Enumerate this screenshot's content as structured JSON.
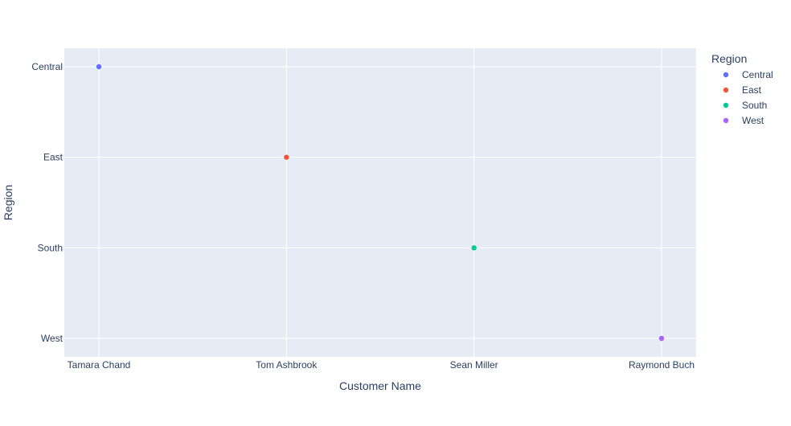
{
  "chart_data": {
    "type": "scatter",
    "title": "",
    "xlabel": "Customer Name",
    "ylabel": "Region",
    "x_categories": [
      "Tamara Chand",
      "Tom Ashbrook",
      "Sean Miller",
      "Raymond Buch"
    ],
    "y_categories": [
      "Central",
      "East",
      "South",
      "West"
    ],
    "legend": {
      "title": "Region",
      "placement": "top-right"
    },
    "grid": true,
    "series": [
      {
        "name": "Central",
        "color": "#636efa",
        "points": [
          {
            "x": "Tamara Chand",
            "y": "Central"
          }
        ]
      },
      {
        "name": "East",
        "color": "#ef553b",
        "points": [
          {
            "x": "Tom Ashbrook",
            "y": "East"
          }
        ]
      },
      {
        "name": "South",
        "color": "#00cc96",
        "points": [
          {
            "x": "Sean Miller",
            "y": "South"
          }
        ]
      },
      {
        "name": "West",
        "color": "#ab63fa",
        "points": [
          {
            "x": "Raymond Buch",
            "y": "West"
          }
        ]
      }
    ]
  }
}
